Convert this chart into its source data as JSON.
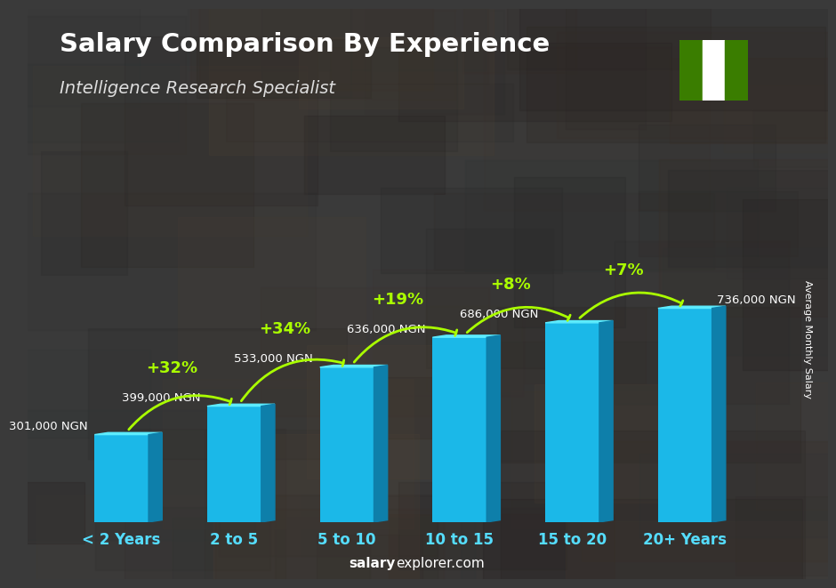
{
  "title": "Salary Comparison By Experience",
  "subtitle": "Intelligence Research Specialist",
  "categories": [
    "< 2 Years",
    "2 to 5",
    "5 to 10",
    "10 to 15",
    "15 to 20",
    "20+ Years"
  ],
  "values": [
    301000,
    399000,
    533000,
    636000,
    686000,
    736000
  ],
  "labels": [
    "301,000 NGN",
    "399,000 NGN",
    "533,000 NGN",
    "636,000 NGN",
    "686,000 NGN",
    "736,000 NGN"
  ],
  "pct_changes": [
    null,
    "+32%",
    "+34%",
    "+19%",
    "+8%",
    "+7%"
  ],
  "bar_color_main": "#1BB8E8",
  "bar_color_light": "#3DD4FF",
  "bar_color_dark": "#0E7FAA",
  "bar_color_top": "#5DECFF",
  "pct_color": "#AAFF00",
  "label_color": "#FFFFFF",
  "tick_color": "#55DDFF",
  "title_color": "#FFFFFF",
  "subtitle_color": "#DDDDDD",
  "bg_color": "#3a3a3a",
  "ylabel": "Average Monthly Salary",
  "footer_bold": "salary",
  "footer_regular": "explorer.com",
  "flag_green": "#3a7d00",
  "flag_white": "#FFFFFF",
  "bar_depth": 0.12,
  "bar_width": 0.48
}
